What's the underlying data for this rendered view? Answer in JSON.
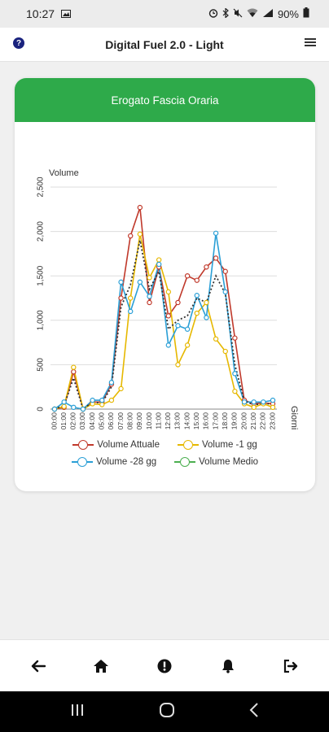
{
  "status_bar": {
    "time": "10:27",
    "battery": "90%"
  },
  "header": {
    "title": "Digital Fuel 2.0 - Light",
    "help_icon": "question-circle-icon",
    "menu_icon": "hamburger-menu-icon"
  },
  "card": {
    "title": "Erogato Fascia Oraria"
  },
  "chart_data": {
    "type": "line",
    "ylabel": "Volume",
    "xlabel": "Giorni",
    "ylim": [
      0,
      2500
    ],
    "yticks": [
      "0",
      "500",
      "1,000",
      "1,500",
      "2,000",
      "2,500"
    ],
    "grid": true,
    "categories": [
      "00:00",
      "01:00",
      "02:00",
      "03:00",
      "04:00",
      "05:00",
      "06:00",
      "07:00",
      "08:00",
      "09:00",
      "10:00",
      "11:00",
      "12:00",
      "13:00",
      "14:00",
      "15:00",
      "16:00",
      "17:00",
      "18:00",
      "19:00",
      "20:00",
      "21:00",
      "22:00",
      "23:00"
    ],
    "series": [
      {
        "name": "Volume Attuale",
        "color": "#c0392b",
        "dashed": false,
        "values": [
          0,
          20,
          420,
          0,
          80,
          80,
          280,
          1250,
          1950,
          2270,
          1200,
          1600,
          1050,
          1200,
          1500,
          1450,
          1600,
          1700,
          1550,
          800,
          100,
          60,
          70,
          60
        ]
      },
      {
        "name": "Volume -1 gg",
        "color": "#e6b800",
        "dashed": false,
        "values": [
          0,
          30,
          470,
          0,
          60,
          50,
          100,
          230,
          1250,
          1970,
          1480,
          1680,
          1320,
          500,
          720,
          1080,
          1200,
          790,
          650,
          200,
          60,
          20,
          60,
          20
        ]
      },
      {
        "name": "Volume -28 gg",
        "color": "#2a9fd6",
        "dashed": false,
        "values": [
          0,
          80,
          20,
          0,
          100,
          100,
          300,
          1430,
          1100,
          1430,
          1270,
          1630,
          720,
          940,
          900,
          1280,
          1030,
          1980,
          1320,
          400,
          80,
          80,
          80,
          100
        ]
      },
      {
        "name": "Volume Medio",
        "color": "#333333",
        "dashed": true,
        "values": [
          0,
          40,
          350,
          0,
          80,
          70,
          250,
          1150,
          1400,
          1900,
          1350,
          1550,
          900,
          1000,
          1050,
          1250,
          1200,
          1500,
          1300,
          500,
          90,
          50,
          60,
          60
        ]
      }
    ],
    "legend_circles": [
      "#c0392b",
      "#e6b800",
      "#2a9fd6",
      "#4caf50"
    ]
  },
  "nav": [
    {
      "name": "back-arrow-icon"
    },
    {
      "name": "home-icon"
    },
    {
      "name": "alert-icon"
    },
    {
      "name": "bell-icon"
    },
    {
      "name": "logout-icon"
    }
  ]
}
